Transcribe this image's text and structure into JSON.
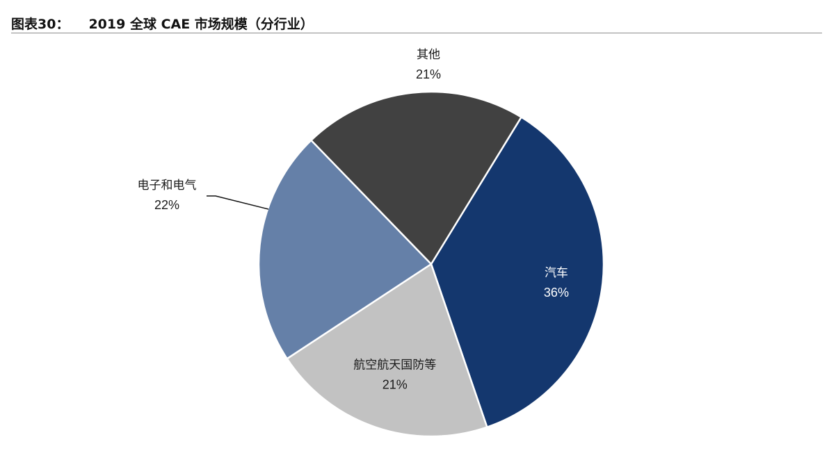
{
  "header": {
    "figure_number": "图表30：",
    "title": "2019 全球 CAE 市场规模（分行业）"
  },
  "chart_data": {
    "type": "pie",
    "title": "2019 全球 CAE 市场规模（分行业）",
    "start_angle_deg": 31.5,
    "direction": "clockwise",
    "slices": [
      {
        "label": "汽车",
        "value": 36,
        "value_label": "36%",
        "color": "#14376e",
        "text_color": "#ffffff"
      },
      {
        "label": "航空航天国防等",
        "value": 21,
        "value_label": "21%",
        "color": "#c2c2c2",
        "text_color": "#1a1a1a"
      },
      {
        "label": "电子和电气",
        "value": 22,
        "value_label": "22%",
        "color": "#6580a8",
        "text_color": "#1a1a1a"
      },
      {
        "label": "其他",
        "value": 21,
        "value_label": "21%",
        "color": "#414141",
        "text_color": "#1a1a1a"
      }
    ],
    "legend": "none",
    "slice_border_color": "#ffffff"
  }
}
